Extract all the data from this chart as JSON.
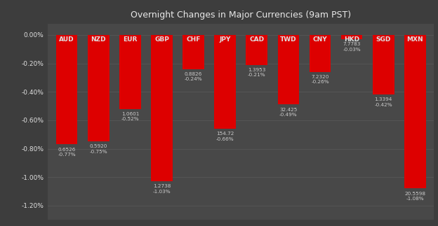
{
  "title": "Overnight Changes in Major Currencies (9am PST)",
  "background_color": "#3d3d3d",
  "plot_bg_color": "#484848",
  "bar_color": "#dd0000",
  "grid_color": "#5a5a5a",
  "text_color": "#e0e0e0",
  "title_color": "#e8e8e8",
  "label_color": "#cccccc",
  "categories": [
    "AUD",
    "NZD",
    "EUR",
    "GBP",
    "CHF",
    "JPY",
    "CAD",
    "TWD",
    "CNY",
    "HKD",
    "SGD",
    "MXN"
  ],
  "pct_changes": [
    -0.77,
    -0.75,
    -0.52,
    -1.03,
    -0.24,
    -0.66,
    -0.21,
    -0.49,
    -0.26,
    -0.03,
    -0.42,
    -1.08
  ],
  "rate_labels": [
    "0.6526",
    "0.5920",
    "1.0601",
    "1.2738",
    "0.8826",
    "154.72",
    "1.3953",
    "32.425",
    "7.2320",
    "7.7783",
    "1.3394",
    "20.5598"
  ],
  "ylim": [
    -1.3,
    0.08
  ],
  "yticks": [
    0.0,
    -0.2,
    -0.4,
    -0.6,
    -0.8,
    -1.0,
    -1.2
  ]
}
